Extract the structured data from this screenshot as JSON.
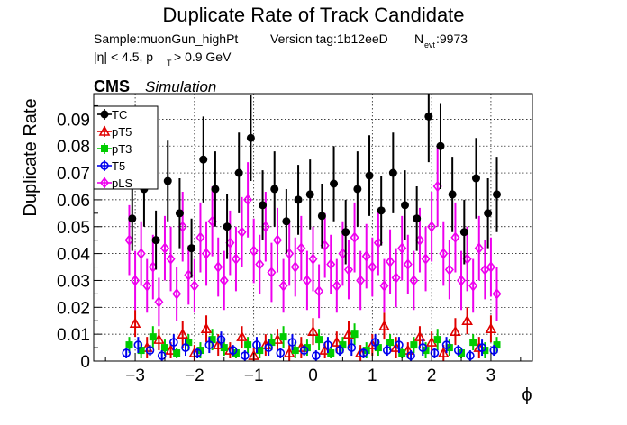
{
  "chart_data": {
    "type": "scatter",
    "title": "Duplicate Rate of Track Candidate",
    "subtitle_line1": {
      "sample": "Sample:muonGun_highPt",
      "version": "Version tag:1b12eeD",
      "nevt_prefix": "N",
      "nevt_sub": "evt",
      "nevt_value": ":9973"
    },
    "subtitle_line2": {
      "eta_cut": "|η| < 4.5, p",
      "pt_sub": "T",
      "pt_cut": " > 0.9 GeV"
    },
    "cms_label": "CMS",
    "simulation_label": "Simulation",
    "xlabel": "ϕ",
    "ylabel": "Duplicate Rate",
    "xlim": [
      -3.7,
      3.7
    ],
    "ylim": [
      0,
      0.0995
    ],
    "xticks": [
      -3,
      -2,
      -1,
      0,
      1,
      2,
      3
    ],
    "xtick_labels": [
      "−3",
      "−2",
      "−1",
      "0",
      "1",
      "2",
      "3"
    ],
    "yticks": [
      0,
      0.01,
      0.02,
      0.03,
      0.04,
      0.05,
      0.06,
      0.07,
      0.08,
      0.09
    ],
    "ytick_labels": [
      "0",
      "0.01",
      "0.02",
      "0.03",
      "0.04",
      "0.05",
      "0.06",
      "0.07",
      "0.08",
      "0.09"
    ],
    "grid": true,
    "legend_position": "top-left",
    "series": [
      {
        "name": "TC",
        "color": "#000000",
        "marker": "filled-circle",
        "x": [
          -3.05,
          -2.85,
          -2.65,
          -2.45,
          -2.25,
          -2.05,
          -1.85,
          -1.65,
          -1.45,
          -1.25,
          -1.05,
          -0.85,
          -0.65,
          -0.45,
          -0.25,
          -0.05,
          0.15,
          0.35,
          0.55,
          0.75,
          0.95,
          1.15,
          1.35,
          1.55,
          1.75,
          1.95,
          2.15,
          2.35,
          2.55,
          2.75,
          2.95,
          3.1
        ],
        "y": [
          0.053,
          0.064,
          0.045,
          0.067,
          0.055,
          0.042,
          0.075,
          0.064,
          0.05,
          0.07,
          0.083,
          0.058,
          0.064,
          0.052,
          0.06,
          0.062,
          0.054,
          0.066,
          0.048,
          0.064,
          0.069,
          0.056,
          0.07,
          0.058,
          0.053,
          0.091,
          0.08,
          0.062,
          0.048,
          0.068,
          0.055,
          0.062
        ],
        "err": [
          0.012,
          0.014,
          0.011,
          0.015,
          0.013,
          0.011,
          0.016,
          0.014,
          0.012,
          0.015,
          0.016,
          0.013,
          0.014,
          0.012,
          0.013,
          0.013,
          0.012,
          0.014,
          0.012,
          0.014,
          0.015,
          0.013,
          0.015,
          0.013,
          0.012,
          0.017,
          0.016,
          0.014,
          0.012,
          0.015,
          0.013,
          0.014
        ]
      },
      {
        "name": "pT5",
        "color": "#e00000",
        "marker": "open-triangle",
        "x": [
          -3.0,
          -2.8,
          -2.6,
          -2.4,
          -2.2,
          -2.0,
          -1.8,
          -1.6,
          -1.4,
          -1.2,
          -1.0,
          -0.8,
          -0.6,
          -0.4,
          -0.2,
          0.0,
          0.2,
          0.4,
          0.6,
          0.8,
          1.0,
          1.2,
          1.4,
          1.6,
          1.8,
          2.0,
          2.2,
          2.4,
          2.6,
          2.8,
          3.0
        ],
        "y": [
          0.014,
          0.005,
          0.008,
          0.004,
          0.01,
          0.003,
          0.012,
          0.006,
          0.004,
          0.009,
          0.002,
          0.006,
          0.008,
          0.003,
          0.005,
          0.011,
          0.004,
          0.007,
          0.01,
          0.003,
          0.006,
          0.013,
          0.005,
          0.004,
          0.009,
          0.007,
          0.003,
          0.011,
          0.015,
          0.005,
          0.012
        ],
        "err": [
          0.005,
          0.004,
          0.004,
          0.003,
          0.005,
          0.003,
          0.005,
          0.004,
          0.003,
          0.004,
          0.003,
          0.004,
          0.004,
          0.003,
          0.004,
          0.005,
          0.003,
          0.004,
          0.005,
          0.003,
          0.004,
          0.005,
          0.004,
          0.003,
          0.004,
          0.004,
          0.003,
          0.005,
          0.005,
          0.004,
          0.005
        ]
      },
      {
        "name": "pT3",
        "color": "#00cc00",
        "marker": "filled-square",
        "x": [
          -3.1,
          -2.9,
          -2.7,
          -2.5,
          -2.3,
          -2.1,
          -1.9,
          -1.7,
          -1.5,
          -1.3,
          -1.1,
          -0.9,
          -0.7,
          -0.5,
          -0.3,
          -0.1,
          0.1,
          0.3,
          0.5,
          0.7,
          0.9,
          1.1,
          1.3,
          1.5,
          1.7,
          1.9,
          2.1,
          2.3,
          2.5,
          2.7,
          2.9,
          3.1
        ],
        "y": [
          0.006,
          0.004,
          0.009,
          0.005,
          0.003,
          0.007,
          0.004,
          0.008,
          0.005,
          0.003,
          0.006,
          0.004,
          0.007,
          0.009,
          0.004,
          0.005,
          0.008,
          0.003,
          0.006,
          0.01,
          0.004,
          0.005,
          0.007,
          0.003,
          0.006,
          0.004,
          0.008,
          0.005,
          0.003,
          0.007,
          0.004,
          0.006
        ],
        "err": [
          0.003,
          0.003,
          0.004,
          0.003,
          0.002,
          0.003,
          0.003,
          0.004,
          0.003,
          0.002,
          0.003,
          0.003,
          0.003,
          0.004,
          0.003,
          0.003,
          0.004,
          0.002,
          0.003,
          0.004,
          0.003,
          0.003,
          0.003,
          0.002,
          0.003,
          0.003,
          0.004,
          0.003,
          0.002,
          0.003,
          0.003,
          0.003
        ]
      },
      {
        "name": "T5",
        "color": "#0000ee",
        "marker": "open-circle",
        "x": [
          -3.15,
          -2.95,
          -2.75,
          -2.55,
          -2.35,
          -2.15,
          -1.95,
          -1.75,
          -1.55,
          -1.35,
          -1.15,
          -0.95,
          -0.75,
          -0.55,
          -0.35,
          -0.15,
          0.05,
          0.25,
          0.45,
          0.65,
          0.85,
          1.05,
          1.25,
          1.45,
          1.65,
          1.85,
          2.05,
          2.25,
          2.45,
          2.65,
          2.85,
          3.05
        ],
        "y": [
          0.003,
          0.006,
          0.004,
          0.002,
          0.007,
          0.005,
          0.003,
          0.006,
          0.008,
          0.004,
          0.002,
          0.006,
          0.005,
          0.003,
          0.007,
          0.004,
          0.002,
          0.006,
          0.004,
          0.005,
          0.003,
          0.007,
          0.004,
          0.006,
          0.002,
          0.005,
          0.003,
          0.006,
          0.004,
          0.002,
          0.005,
          0.004
        ],
        "err": [
          0.002,
          0.003,
          0.002,
          0.002,
          0.003,
          0.003,
          0.002,
          0.003,
          0.003,
          0.002,
          0.002,
          0.003,
          0.003,
          0.002,
          0.003,
          0.002,
          0.002,
          0.003,
          0.002,
          0.003,
          0.002,
          0.003,
          0.002,
          0.003,
          0.002,
          0.003,
          0.002,
          0.003,
          0.002,
          0.002,
          0.003,
          0.002
        ]
      },
      {
        "name": "pLS",
        "color": "#ee00ee",
        "marker": "open-diamond",
        "x": [
          -3.1,
          -3.0,
          -2.9,
          -2.8,
          -2.7,
          -2.6,
          -2.5,
          -2.4,
          -2.3,
          -2.2,
          -2.1,
          -2.0,
          -1.9,
          -1.8,
          -1.7,
          -1.6,
          -1.5,
          -1.4,
          -1.3,
          -1.2,
          -1.1,
          -1.0,
          -0.9,
          -0.8,
          -0.7,
          -0.6,
          -0.5,
          -0.4,
          -0.3,
          -0.2,
          -0.1,
          0.0,
          0.1,
          0.2,
          0.3,
          0.4,
          0.5,
          0.6,
          0.7,
          0.8,
          0.9,
          1.0,
          1.1,
          1.2,
          1.3,
          1.4,
          1.5,
          1.6,
          1.7,
          1.8,
          1.9,
          2.0,
          2.1,
          2.2,
          2.3,
          2.4,
          2.5,
          2.6,
          2.7,
          2.8,
          2.9,
          3.0,
          3.1
        ],
        "y": [
          0.045,
          0.03,
          0.04,
          0.028,
          0.035,
          0.022,
          0.042,
          0.038,
          0.025,
          0.05,
          0.032,
          0.028,
          0.046,
          0.04,
          0.052,
          0.035,
          0.03,
          0.044,
          0.038,
          0.048,
          0.06,
          0.041,
          0.036,
          0.05,
          0.033,
          0.045,
          0.028,
          0.04,
          0.035,
          0.042,
          0.03,
          0.038,
          0.026,
          0.043,
          0.036,
          0.028,
          0.04,
          0.034,
          0.046,
          0.03,
          0.039,
          0.035,
          0.044,
          0.028,
          0.037,
          0.031,
          0.042,
          0.036,
          0.03,
          0.045,
          0.038,
          0.05,
          0.065,
          0.04,
          0.034,
          0.046,
          0.03,
          0.038,
          0.028,
          0.042,
          0.034,
          0.035,
          0.025
        ],
        "err": [
          0.013,
          0.011,
          0.012,
          0.01,
          0.012,
          0.009,
          0.012,
          0.012,
          0.01,
          0.013,
          0.011,
          0.01,
          0.013,
          0.012,
          0.013,
          0.011,
          0.011,
          0.012,
          0.012,
          0.013,
          0.014,
          0.012,
          0.011,
          0.013,
          0.011,
          0.012,
          0.01,
          0.012,
          0.011,
          0.012,
          0.011,
          0.012,
          0.01,
          0.012,
          0.011,
          0.01,
          0.012,
          0.011,
          0.013,
          0.011,
          0.012,
          0.011,
          0.012,
          0.01,
          0.012,
          0.011,
          0.012,
          0.011,
          0.011,
          0.012,
          0.012,
          0.013,
          0.015,
          0.012,
          0.011,
          0.013,
          0.011,
          0.012,
          0.01,
          0.012,
          0.011,
          0.011,
          0.01
        ]
      }
    ]
  }
}
